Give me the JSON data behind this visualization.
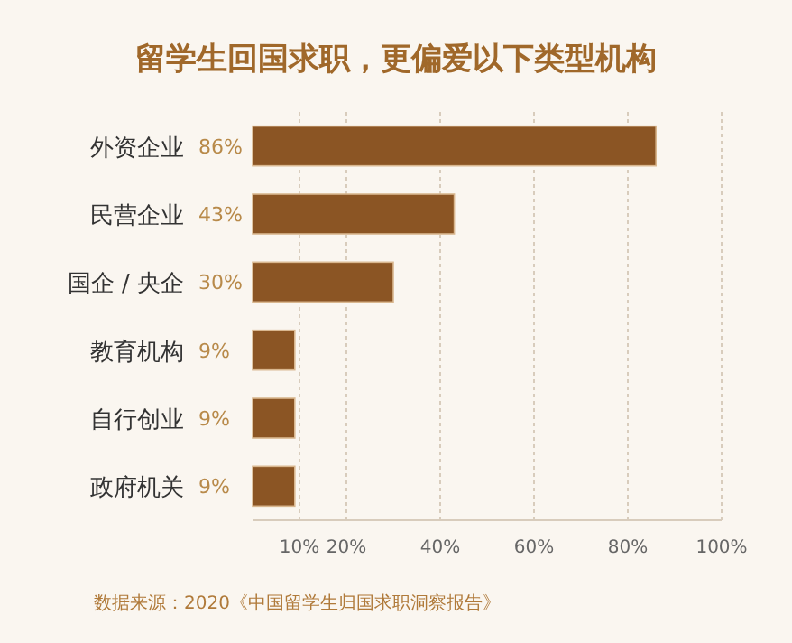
{
  "chart_data": {
    "type": "bar",
    "orientation": "horizontal",
    "title": "留学生回国求职，更偏爱以下类型机构",
    "categories": [
      "外资企业",
      "民营企业",
      "国企 / 央企",
      "教育机构",
      "自行创业",
      "政府机关"
    ],
    "values": [
      86,
      43,
      30,
      9,
      9,
      9
    ],
    "color": "#8b5524",
    "value_labels": [
      "86%",
      "43%",
      "30%",
      "9%",
      "9%",
      "9%"
    ],
    "xlim": [
      0,
      100
    ],
    "xticks": [
      {
        "value": 10,
        "label": "10%"
      },
      {
        "value": 20,
        "label": "20%"
      },
      {
        "value": 40,
        "label": "40%"
      },
      {
        "value": 60,
        "label": "60%"
      },
      {
        "value": 80,
        "label": "80%"
      },
      {
        "value": 100,
        "label": "100%"
      }
    ],
    "grid": "x",
    "annotations": [
      "数据来源：2020《中国留学生归国求职洞察报告》"
    ]
  }
}
